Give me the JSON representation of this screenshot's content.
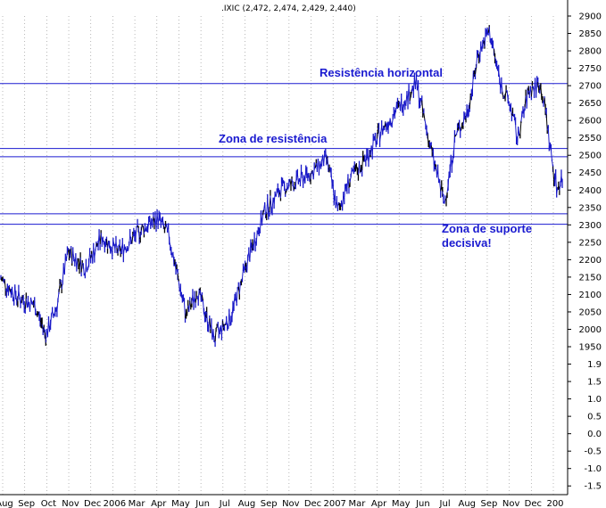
{
  "chart_data": {
    "type": "line",
    "title": ".IXIC (2,472, 2,474, 2,429, 2,440)",
    "xlabel": "",
    "ylabel": "",
    "ylim": [
      -1.5,
      2900
    ],
    "y_ticks": [
      "2900",
      "2850",
      "2800",
      "2750",
      "2700",
      "2650",
      "2600",
      "2550",
      "2500",
      "2450",
      "2400",
      "2350",
      "2300",
      "2250",
      "2200",
      "2150",
      "2100",
      "2050",
      "2000",
      "1950",
      "1.9",
      "1.5",
      "1.0",
      "0.5",
      "0.0",
      "-0.5",
      "-1.0",
      "-1.5"
    ],
    "x_ticks": [
      "Aug",
      "Sep",
      "Oct",
      "Nov",
      "Dec",
      "2006",
      "Mar",
      "Apr",
      "May",
      "Jun",
      "Jul",
      "Aug",
      "Sep",
      "Nov",
      "Dec",
      "2007",
      "Mar",
      "Apr",
      "May",
      "Jun",
      "Jul",
      "Aug",
      "Sep",
      "Nov",
      "Dec",
      "200"
    ],
    "grid": true,
    "horizontal_lines": [
      2720,
      2547,
      2525,
      2373,
      2345
    ],
    "annotations": [
      "Resistência horizontal",
      "Zona de resistência",
      "Zona de suporte",
      "decisiva!"
    ],
    "series": [
      {
        "color": "#1a1ac8",
        "x": [
          0,
          0.03,
          0.06,
          0.08,
          0.1,
          0.12,
          0.15,
          0.18,
          0.21,
          0.25,
          0.28,
          0.3,
          0.32,
          0.33,
          0.35,
          0.38,
          0.41,
          0.44,
          0.47,
          0.5,
          0.53,
          0.56,
          0.58,
          0.6,
          0.62,
          0.65,
          0.68,
          0.71,
          0.74,
          0.77,
          0.79,
          0.81,
          0.83,
          0.84,
          0.85,
          0.87,
          0.89,
          0.91,
          0.92,
          0.94,
          0.96,
          0.97,
          0.98,
          0.99,
          1.0
        ],
        "values": [
          2200,
          2150,
          2130,
          2050,
          2130,
          2270,
          2230,
          2310,
          2270,
          2330,
          2360,
          2310,
          2170,
          2100,
          2170,
          2040,
          2100,
          2250,
          2380,
          2440,
          2460,
          2490,
          2520,
          2380,
          2460,
          2520,
          2600,
          2660,
          2720,
          2520,
          2400,
          2580,
          2640,
          2710,
          2800,
          2860,
          2720,
          2650,
          2570,
          2700,
          2720,
          2650,
          2530,
          2440,
          2470
        ]
      }
    ]
  }
}
